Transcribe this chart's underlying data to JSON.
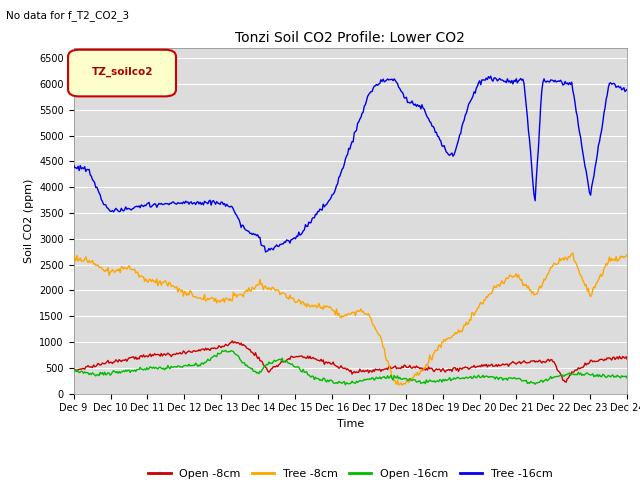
{
  "title": "Tonzi Soil CO2 Profile: Lower CO2",
  "subtitle": "No data for f_T2_CO2_3",
  "xlabel": "Time",
  "ylabel": "Soil CO2 (ppm)",
  "ylim": [
    0,
    6700
  ],
  "yticks": [
    0,
    500,
    1000,
    1500,
    2000,
    2500,
    3000,
    3500,
    4000,
    4500,
    5000,
    5500,
    6000,
    6500
  ],
  "xtick_labels": [
    "Dec 9",
    "Dec 10",
    "Dec 11",
    "Dec 12",
    "Dec 13",
    "Dec 14",
    "Dec 15",
    "Dec 16",
    "Dec 17",
    "Dec 18",
    "Dec 19",
    "Dec 20",
    "Dec 21",
    "Dec 22",
    "Dec 23",
    "Dec 24"
  ],
  "legend_label": "TZ_soilco2",
  "legend_entries": [
    "Open -8cm",
    "Tree -8cm",
    "Open -16cm",
    "Tree -16cm"
  ],
  "colors": {
    "open_8cm": "#cc0000",
    "tree_8cm": "#ffa500",
    "open_16cm": "#00bb00",
    "tree_16cm": "#0000ee"
  },
  "plot_bg": "#dcdcdc",
  "fig_bg": "#ffffff"
}
